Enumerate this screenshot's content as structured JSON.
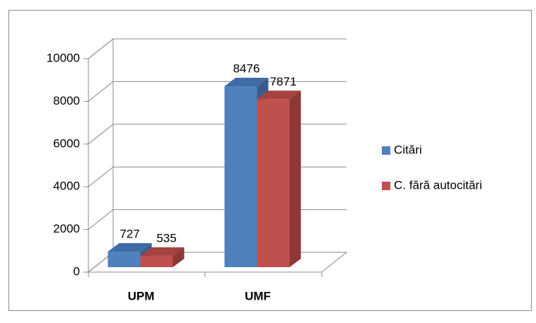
{
  "chart_data": {
    "type": "bar3d",
    "categories": [
      "UPM",
      "UMF"
    ],
    "series": [
      {
        "name": "Citări",
        "color": "#4f81bd",
        "side": "#385d8a",
        "top": "#3f6ca6",
        "values": [
          727,
          8476
        ]
      },
      {
        "name": "C. fără autocitări",
        "color": "#c0504d",
        "side": "#8c3836",
        "top": "#a6423f",
        "values": [
          535,
          7871
        ]
      }
    ],
    "ylim": [
      0,
      10000
    ],
    "yticks": [
      0,
      2000,
      4000,
      6000,
      8000,
      10000
    ],
    "grid": true,
    "legend": "right"
  }
}
